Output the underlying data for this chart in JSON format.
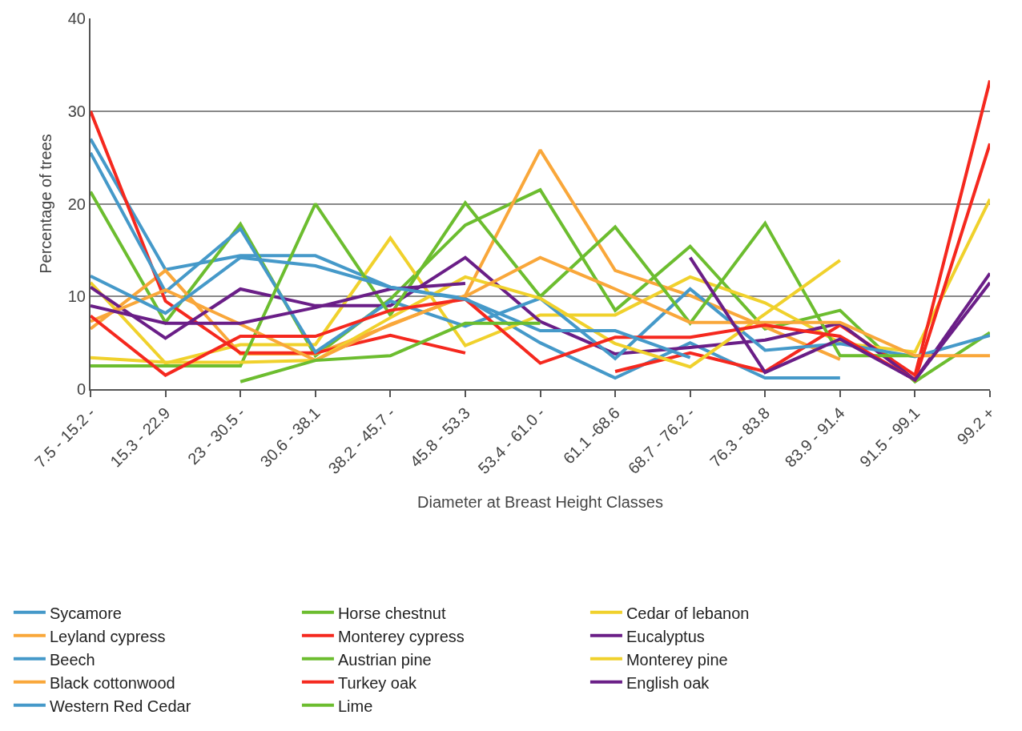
{
  "chart_data": {
    "type": "line",
    "xlabel": "Diameter at Breast Height Classes",
    "ylabel": "Percentage of trees",
    "categories": [
      "7.5 - 15.2 -",
      "15.3 - 22.9",
      "23 - 30.5 -",
      "30.6 - 38.1",
      "38.2 - 45.7 -",
      "45.8 - 53.3",
      "53.4 - 61.0 -",
      "61.1 -68.6",
      "68.7 - 76.2 -",
      "76.3 - 83.8",
      "83.9 - 91.4",
      "91.5 - 99.1",
      "99.2 +"
    ],
    "ylim": [
      0,
      40
    ],
    "yticks": [
      0,
      10,
      20,
      30,
      40
    ],
    "grid": "y",
    "legend": "bottom",
    "marker": "none",
    "line_style": "solid",
    "series": [
      {
        "name": "Sycamore",
        "color": "#4599c9",
        "values": [
          27,
          12.9,
          14.4,
          14.4,
          11,
          9.8,
          5,
          1.2,
          5,
          1.2,
          1.2,
          null,
          null
        ]
      },
      {
        "name": "Horse chestnut",
        "color": "#6cbd2f",
        "values": [
          21.3,
          7.2,
          17.8,
          3.6,
          9.7,
          17.7,
          21.5,
          8.5,
          15.4,
          6.5,
          8.5,
          0.8,
          6.1
        ]
      },
      {
        "name": "Cedar of lebanon",
        "color": "#f0d12c",
        "values": [
          11.5,
          2.8,
          4.8,
          4.8,
          16.3,
          4.7,
          8,
          8,
          12.1,
          9.3,
          5,
          4,
          20.5
        ]
      },
      {
        "name": "Leyland cypress",
        "color": "#f9a73a",
        "values": [
          6.5,
          12.8,
          3.8,
          3.8,
          6.9,
          10.1,
          25.8,
          12.8,
          10.1,
          6.7,
          3.2,
          null,
          null
        ]
      },
      {
        "name": "Monterey cypress",
        "color": "#f5281e",
        "values": [
          30,
          9.5,
          3.9,
          3.9,
          5.8,
          3.9,
          null,
          1.9,
          3.9,
          1.9,
          6.9,
          1.5,
          33.3
        ]
      },
      {
        "name": "Eucalyptus",
        "color": "#6a1e87",
        "values": [
          11,
          5.5,
          10.8,
          9,
          9,
          14.2,
          7.3,
          3.8,
          4.5,
          5.3,
          7.1,
          1,
          12.5
        ]
      },
      {
        "name": "Beech",
        "color": "#4599c9",
        "values": [
          25.5,
          10.5,
          17.3,
          4,
          9.5,
          6.8,
          9.8,
          3.3,
          10.8,
          4.2,
          4.9,
          3.5,
          5.8
        ]
      },
      {
        "name": "Austrian pine",
        "color": "#6cbd2f",
        "values": [
          2.5,
          2.5,
          2.5,
          20,
          8,
          20.1,
          10,
          17.5,
          7.1,
          17.9,
          3.6,
          3.6,
          null
        ]
      },
      {
        "name": "Monterey pine",
        "color": "#f0d12c",
        "values": [
          3.4,
          2.9,
          2.9,
          3.1,
          7.7,
          12.1,
          9.8,
          4.9,
          2.4,
          8.1,
          13.9,
          null,
          null
        ]
      },
      {
        "name": "Black cottonwood",
        "color": "#f9a73a",
        "values": [
          7.3,
          10.7,
          7,
          3.1,
          7,
          10,
          14.2,
          10.8,
          7.2,
          7.2,
          7.2,
          3.6,
          3.6
        ]
      },
      {
        "name": "Turkey oak",
        "color": "#f5281e",
        "values": [
          7.9,
          1.5,
          5.7,
          5.7,
          8.5,
          9.7,
          2.8,
          5.6,
          5.6,
          6.9,
          5.7,
          1,
          26.5
        ]
      },
      {
        "name": "English oak",
        "color": "#6a1e87",
        "values": [
          9,
          7.1,
          7.1,
          8.8,
          10.8,
          11.4,
          null,
          null,
          14.2,
          1.8,
          5.4,
          1,
          11.5
        ]
      },
      {
        "name": "Western Red Cedar",
        "color": "#4599c9",
        "values": [
          12.2,
          8.2,
          14.2,
          13.3,
          11,
          9.7,
          6.3,
          6.3,
          3.4,
          null,
          null,
          null,
          null
        ]
      },
      {
        "name": "Lime",
        "color": "#6cbd2f",
        "values": [
          null,
          null,
          0.8,
          3.1,
          3.6,
          7.1,
          7.1,
          null,
          null,
          null,
          null,
          null,
          null
        ]
      }
    ]
  }
}
